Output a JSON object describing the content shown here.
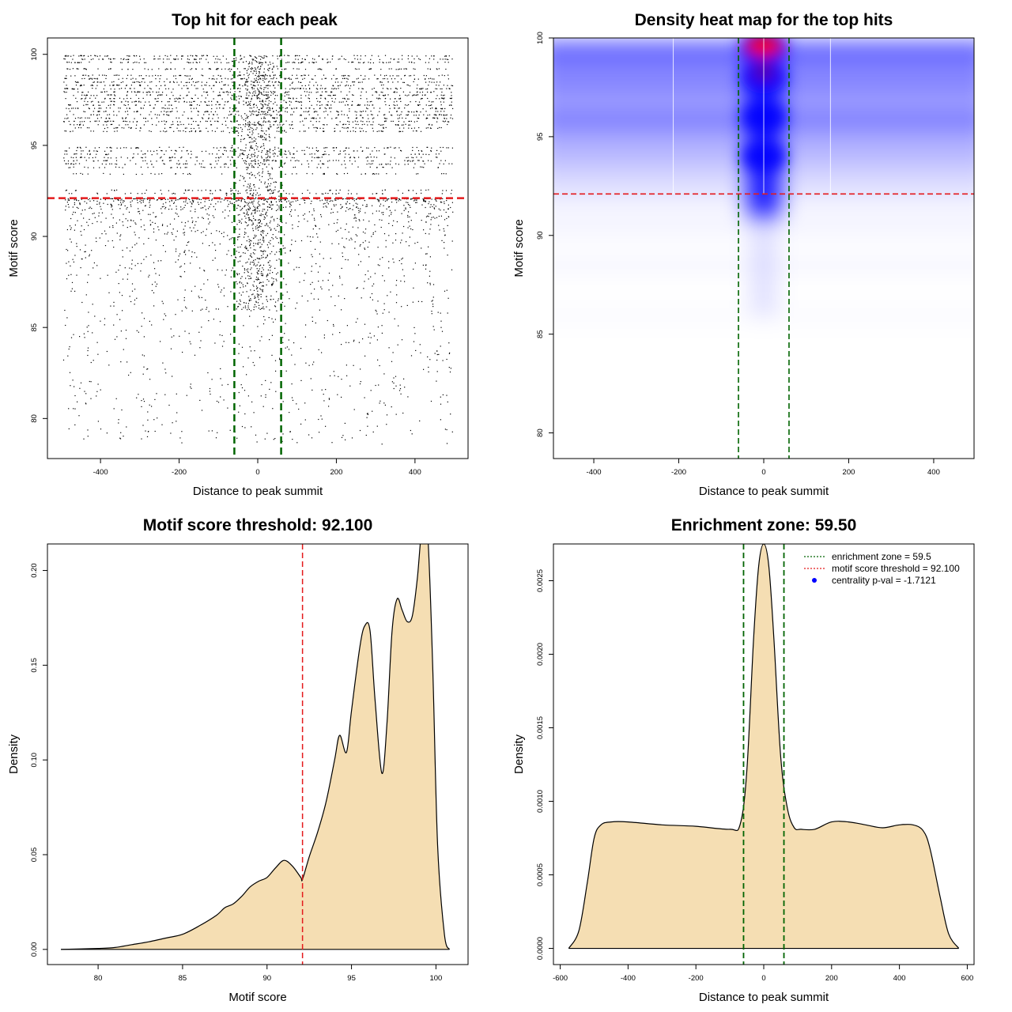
{
  "colors": {
    "point": "#000000",
    "threshold_line": "#e41a1c",
    "zone_line": "#006400",
    "density_fill": "#f5deb3",
    "heat_low": "#ffffff",
    "heat_mid": "#0000ff",
    "heat_high": "#ff0000"
  },
  "chart_data": [
    {
      "type": "scatter",
      "title": "Top hit for each peak",
      "xlabel": "Distance to peak summit",
      "ylabel": "Motif score",
      "xlim": [
        -535,
        535
      ],
      "ylim": [
        77.8,
        100.9
      ],
      "xticks": [
        -400,
        -200,
        0,
        200,
        400
      ],
      "yticks": [
        80,
        85,
        90,
        95,
        100
      ],
      "vlines": [
        -59.5,
        59.5
      ],
      "hlines": [
        92.1
      ],
      "grid": false,
      "description_points": "dense rows of motif hits spanning x -495..495; hits above y 92.1 very dense, below sparse; concentration around x 0"
    },
    {
      "type": "heatmap",
      "title": "Density heat map for the top hits",
      "xlabel": "Distance to peak summit",
      "ylabel": "Motif score",
      "xlim": [
        -495,
        495
      ],
      "ylim": [
        78.7,
        100
      ],
      "xticks": [
        -400,
        -200,
        0,
        200,
        400
      ],
      "yticks": [
        80,
        85,
        90,
        95,
        100
      ],
      "vlines": [
        -59.5,
        59.5
      ],
      "hlines": [
        92.1
      ],
      "white_grid_x": [
        -213,
        0,
        157
      ],
      "hotspots": [
        {
          "x": 0,
          "y": 99.5,
          "level": 1.0
        },
        {
          "x": 0,
          "y": 98.0,
          "level": 0.85
        },
        {
          "x": 0,
          "y": 96.0,
          "level": 0.75
        },
        {
          "x": 0,
          "y": 94.0,
          "level": 0.55
        }
      ]
    },
    {
      "type": "area",
      "title": "Motif score threshold: 92.100",
      "xlabel": "Motif score",
      "ylabel": "Density",
      "xlim": [
        77,
        101.9
      ],
      "ylim": [
        -0.008,
        0.214
      ],
      "xticks": [
        80,
        85,
        90,
        95,
        100
      ],
      "yticks": [
        0.0,
        0.05,
        0.1,
        0.15,
        0.2
      ],
      "ytick_labels": [
        "0.00",
        "0.05",
        "0.10",
        "0.15",
        "0.20"
      ],
      "vlines": [
        92.1
      ],
      "x": [
        77.8,
        80,
        81,
        82,
        83,
        84,
        85,
        86,
        87,
        87.5,
        88,
        88.5,
        89,
        89.5,
        90,
        90.5,
        91,
        91.5,
        92,
        92.1,
        92.5,
        93,
        93.5,
        94,
        94.3,
        94.7,
        95,
        95.5,
        95.8,
        96.1,
        96.4,
        96.8,
        97.1,
        97.4,
        97.7,
        98,
        98.3,
        98.6,
        98.9,
        99.2,
        99.5,
        99.8,
        100.1,
        100.5,
        100.8
      ],
      "y": [
        0.0,
        0.0005,
        0.001,
        0.0025,
        0.004,
        0.006,
        0.008,
        0.0125,
        0.018,
        0.022,
        0.024,
        0.028,
        0.033,
        0.036,
        0.038,
        0.043,
        0.047,
        0.044,
        0.038,
        0.037,
        0.049,
        0.062,
        0.078,
        0.1,
        0.113,
        0.104,
        0.126,
        0.16,
        0.171,
        0.168,
        0.131,
        0.093,
        0.119,
        0.168,
        0.185,
        0.179,
        0.173,
        0.176,
        0.196,
        0.225,
        0.221,
        0.152,
        0.055,
        0.008,
        0.0
      ]
    },
    {
      "type": "area",
      "title": "Enrichment zone: 59.50",
      "xlabel": "Distance to peak summit",
      "ylabel": "Density",
      "xlim": [
        -620,
        620
      ],
      "ylim": [
        -0.00011,
        0.00275
      ],
      "xticks": [
        -600,
        -400,
        -200,
        0,
        200,
        400,
        600
      ],
      "yticks": [
        0.0,
        0.0005,
        0.001,
        0.0015,
        0.002,
        0.0025
      ],
      "ytick_labels": [
        "0.0000",
        "0.0005",
        "0.0010",
        "0.0015",
        "0.0020",
        "0.0025"
      ],
      "vlines": [
        -59.5,
        59.5
      ],
      "x": [
        -575,
        -545,
        -520,
        -500,
        -480,
        -450,
        -400,
        -300,
        -200,
        -100,
        -70,
        -50,
        -30,
        -15,
        0,
        15,
        30,
        50,
        70,
        90,
        110,
        150,
        200,
        250,
        300,
        350,
        400,
        440,
        470,
        490,
        520,
        545,
        575
      ],
      "y": [
        0.0,
        0.00012,
        0.00045,
        0.00075,
        0.00084,
        0.00086,
        0.00086,
        0.00084,
        0.00083,
        0.00081,
        0.00084,
        0.0012,
        0.0021,
        0.0026,
        0.00275,
        0.0026,
        0.0021,
        0.0013,
        0.00095,
        0.00082,
        0.00081,
        0.00081,
        0.00086,
        0.00086,
        0.00084,
        0.00082,
        0.00084,
        0.00084,
        0.0008,
        0.00068,
        0.00035,
        0.0001,
        0.0
      ],
      "legend": {
        "position": "top-right",
        "entries": [
          "enrichment zone = 59.5",
          "motif score threshold = 92.100",
          "centrality p-val = -1.7121"
        ]
      }
    }
  ]
}
